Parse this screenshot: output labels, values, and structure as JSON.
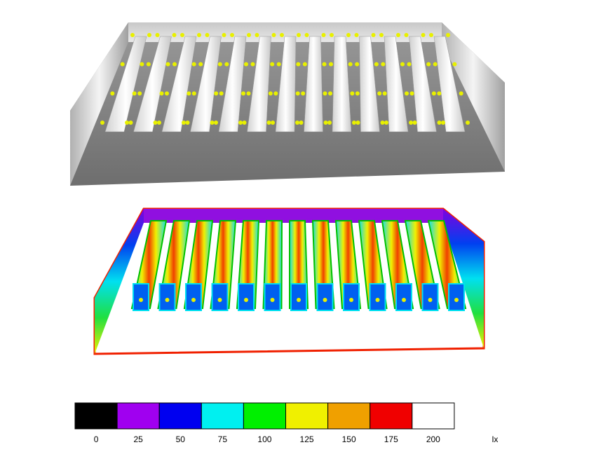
{
  "legend": {
    "ticks": [
      0,
      25,
      50,
      75,
      100,
      125,
      150,
      175,
      200
    ],
    "colors": [
      "#000000",
      "#a000f0",
      "#0000f0",
      "#00f0f0",
      "#00f000",
      "#f0f000",
      "#f0a000",
      "#f00000",
      "#ffffff"
    ],
    "unit": "lx"
  }
}
